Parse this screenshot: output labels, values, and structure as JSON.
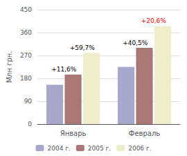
{
  "chart_data": {
    "type": "bar",
    "categories": [
      "Январь",
      "Февраль"
    ],
    "series": [
      {
        "name": "2004 г.",
        "color": "#a8a8cc",
        "values": [
          155,
          225
        ]
      },
      {
        "name": "2005 г.",
        "color": "#aa7777",
        "values": [
          195,
          300
        ]
      },
      {
        "name": "2006 г.",
        "color": "#eeeecc",
        "values": [
          280,
          385
        ]
      }
    ],
    "ylabel": "Млн грн.",
    "ylim": [
      0,
      450
    ],
    "yticks": [
      0,
      90,
      180,
      270,
      360,
      450
    ],
    "grid": true,
    "legend": "bottom",
    "annotations": [
      {
        "text": "+11,6%",
        "color": "black"
      },
      {
        "text": "+59,7%",
        "color": "black"
      },
      {
        "text": "+40,5%",
        "color": "black"
      },
      {
        "text": "+20,6%",
        "color": "red"
      }
    ]
  }
}
